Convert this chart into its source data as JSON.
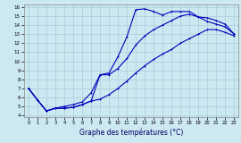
{
  "title": "Graphe des températures (°C)",
  "bg_color": "#cce8f0",
  "grid_color": "#aaccdd",
  "line_color": "#0000bb",
  "xlim": [
    -0.5,
    23.5
  ],
  "ylim": [
    3.8,
    16.3
  ],
  "xticks": [
    0,
    1,
    2,
    3,
    4,
    5,
    6,
    7,
    8,
    9,
    10,
    11,
    12,
    13,
    14,
    15,
    16,
    17,
    18,
    19,
    20,
    21,
    22,
    23
  ],
  "yticks": [
    4,
    5,
    6,
    7,
    8,
    9,
    10,
    11,
    12,
    13,
    14,
    15,
    16
  ],
  "curve1_x": [
    0,
    1,
    2,
    3,
    4,
    5,
    6,
    7,
    8,
    9,
    10,
    11,
    12,
    13,
    14,
    15,
    16,
    17,
    18,
    19,
    20,
    21,
    22,
    23
  ],
  "curve1_y": [
    7.0,
    5.7,
    4.5,
    4.8,
    4.8,
    4.9,
    5.2,
    5.6,
    8.5,
    8.7,
    10.5,
    12.7,
    15.7,
    15.8,
    15.5,
    15.1,
    15.5,
    15.5,
    15.5,
    14.9,
    14.4,
    14.1,
    13.8,
    13.0
  ],
  "curve2_x": [
    0,
    1,
    2,
    3,
    4,
    5,
    6,
    7,
    8,
    9,
    10,
    11,
    12,
    13,
    14,
    15,
    16,
    17,
    18,
    19,
    20,
    21,
    22,
    23
  ],
  "curve2_y": [
    7.0,
    5.7,
    4.5,
    4.8,
    5.0,
    5.2,
    5.5,
    6.5,
    8.5,
    8.5,
    9.2,
    10.3,
    11.8,
    12.8,
    13.5,
    14.0,
    14.5,
    15.0,
    15.2,
    14.9,
    14.8,
    14.5,
    14.1,
    13.0
  ],
  "curve3_x": [
    0,
    1,
    2,
    3,
    4,
    5,
    6,
    7,
    8,
    9,
    10,
    11,
    12,
    13,
    14,
    15,
    16,
    17,
    18,
    19,
    20,
    21,
    22,
    23
  ],
  "curve3_y": [
    7.0,
    5.7,
    4.5,
    4.8,
    4.8,
    4.9,
    5.2,
    5.6,
    5.8,
    6.3,
    7.0,
    7.8,
    8.7,
    9.5,
    10.2,
    10.8,
    11.3,
    12.0,
    12.5,
    13.0,
    13.5,
    13.5,
    13.2,
    12.8
  ]
}
